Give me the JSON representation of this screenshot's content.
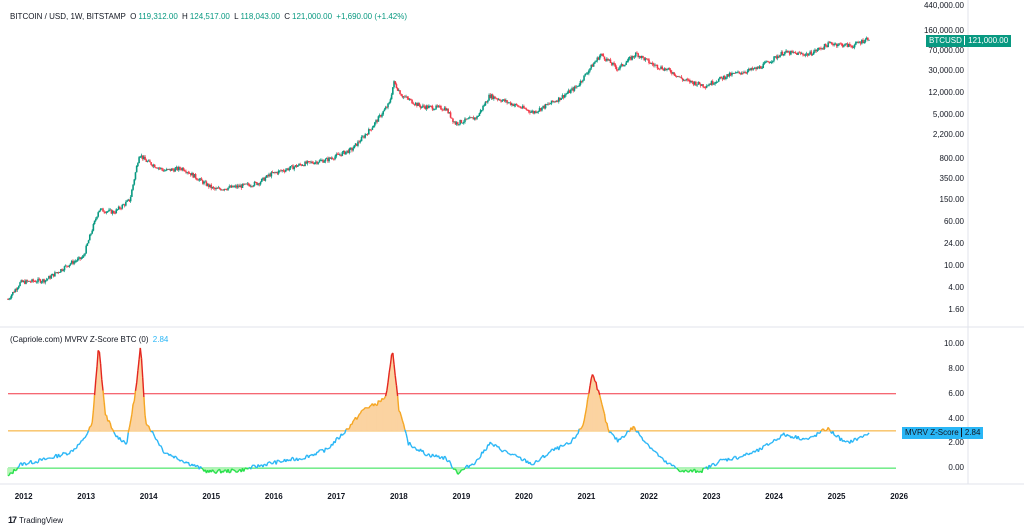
{
  "header": {
    "symbol": "BITCOIN / USD, 1W, BITSTAMP",
    "o_label": "O",
    "o_val": "119,312.00",
    "h_label": "H",
    "h_val": "124,517.00",
    "l_label": "L",
    "l_val": "118,043.00",
    "c_label": "C",
    "c_val": "121,000.00",
    "change": "+1,690.00 (+1.42%)"
  },
  "price_tag": {
    "symbol": "BTCUSD",
    "value": "121,000.00",
    "color": "#089981"
  },
  "indicator": {
    "title": "(Capriole.com) MVRV Z-Score BTC (0)",
    "value": "2.84",
    "tag_label": "MVRV Z-Score",
    "tag_value": "2.84",
    "color": "#29b6f6"
  },
  "price_axis": [
    "440,000.00",
    "160,000.00",
    "70,000.00",
    "30,000.00",
    "12,000.00",
    "5,000.00",
    "2,200.00",
    "800.00",
    "350.00",
    "150.00",
    "60.00",
    "24.00",
    "10.00",
    "4.00",
    "1.60"
  ],
  "z_axis": [
    "10.00",
    "8.00",
    "6.00",
    "4.00",
    "2.00",
    "0.00"
  ],
  "x_axis": [
    "2012",
    "2013",
    "2014",
    "2015",
    "2016",
    "2017",
    "2018",
    "2019",
    "2020",
    "2021",
    "2022",
    "2023",
    "2024",
    "2025",
    "2026"
  ],
  "brand": "TradingView",
  "colors": {
    "up": "#089981",
    "down": "#f23645",
    "red_line": "#f23645",
    "orange_line": "#f5a623",
    "green_line": "#26e04a"
  },
  "chart_data": [
    {
      "type": "line",
      "title": "BITCOIN / USD, 1W, BITSTAMP",
      "scale": "log",
      "x": [
        2011.8,
        2012.0,
        2012.4,
        2012.8,
        2013.0,
        2013.25,
        2013.5,
        2013.75,
        2013.9,
        2014.0,
        2014.3,
        2014.6,
        2014.9,
        2015.1,
        2015.5,
        2015.8,
        2016.0,
        2016.5,
        2016.9,
        2017.3,
        2017.6,
        2017.9,
        2017.97,
        2018.1,
        2018.4,
        2018.8,
        2018.95,
        2019.3,
        2019.5,
        2019.9,
        2020.2,
        2020.6,
        2020.9,
        2021.1,
        2021.28,
        2021.55,
        2021.85,
        2022.1,
        2022.4,
        2022.6,
        2022.95,
        2023.3,
        2023.8,
        2024.2,
        2024.6,
        2024.95,
        2025.3,
        2025.58
      ],
      "values": [
        2.5,
        5,
        5.5,
        11,
        14,
        100,
        90,
        150,
        1000,
        750,
        500,
        550,
        320,
        230,
        260,
        300,
        430,
        650,
        780,
        1200,
        2800,
        8000,
        19000,
        11000,
        7000,
        6500,
        3500,
        4500,
        11000,
        7500,
        5500,
        9500,
        16000,
        33000,
        60000,
        33000,
        62000,
        40000,
        30000,
        21000,
        16500,
        25000,
        34000,
        65000,
        60000,
        95000,
        85000,
        121000
      ]
    },
    {
      "type": "area",
      "title": "(Capriole.com) MVRV Z-Score BTC (0)",
      "x": [
        2011.8,
        2012.0,
        2012.4,
        2012.8,
        2013.0,
        2013.15,
        2013.25,
        2013.35,
        2013.5,
        2013.7,
        2013.85,
        2013.92,
        2014.0,
        2014.3,
        2014.6,
        2015.0,
        2015.5,
        2016.0,
        2016.5,
        2016.9,
        2017.2,
        2017.5,
        2017.7,
        2017.85,
        2017.95,
        2018.05,
        2018.2,
        2018.5,
        2018.8,
        2019.0,
        2019.3,
        2019.5,
        2019.8,
        2020.2,
        2020.5,
        2020.8,
        2021.0,
        2021.15,
        2021.25,
        2021.4,
        2021.55,
        2021.8,
        2022.0,
        2022.3,
        2022.6,
        2022.9,
        2023.2,
        2023.5,
        2023.8,
        2024.2,
        2024.6,
        2024.9,
        2025.2,
        2025.4,
        2025.58
      ],
      "values": [
        -0.7,
        0.3,
        0.7,
        1.3,
        2.2,
        3.6,
        10.0,
        4.5,
        2.7,
        2.0,
        6.5,
        9.8,
        3.8,
        1.3,
        0.6,
        -0.3,
        -0.2,
        0.4,
        0.8,
        1.5,
        3.0,
        4.8,
        5.2,
        5.8,
        9.6,
        4.8,
        2.0,
        1.1,
        0.8,
        -0.4,
        0.6,
        2.0,
        1.2,
        0.3,
        1.4,
        2.0,
        3.5,
        7.8,
        6.0,
        3.0,
        2.2,
        3.3,
        2.1,
        0.5,
        -0.3,
        -0.2,
        0.6,
        0.9,
        1.4,
        2.7,
        2.3,
        3.2,
        2.0,
        2.4,
        2.84
      ],
      "hlines": [
        0,
        3,
        6
      ],
      "ylim": [
        -0.8,
        10.5
      ]
    }
  ]
}
